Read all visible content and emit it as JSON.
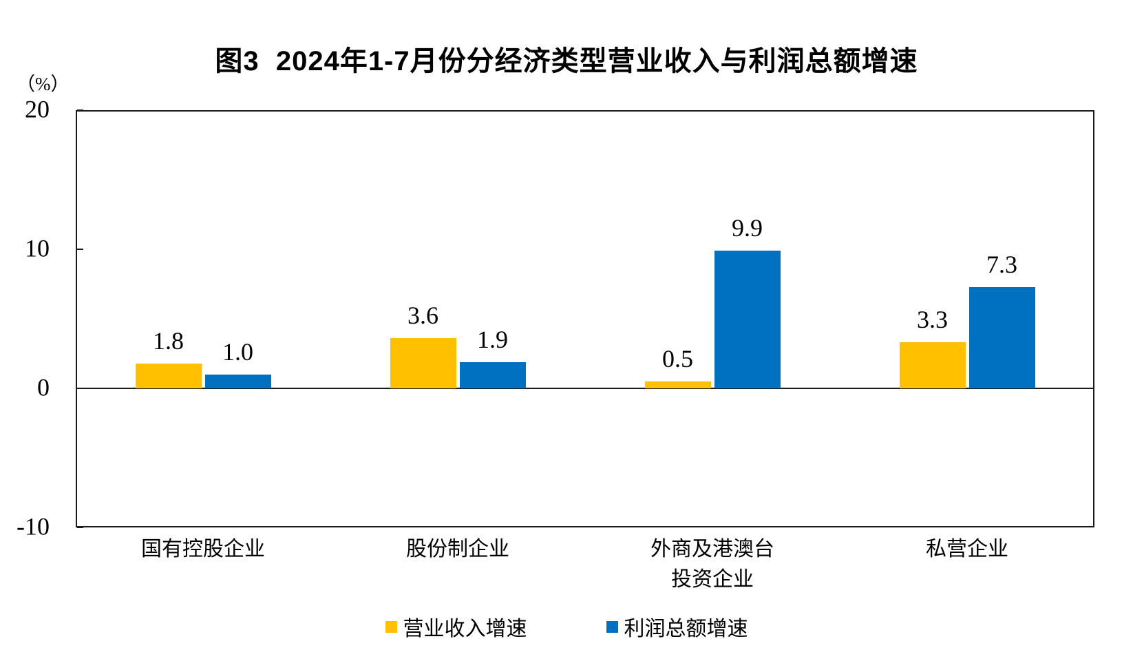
{
  "chart_data": {
    "type": "bar",
    "title": "图3  2024年1-7月份分经济类型营业收入与利润总额增速",
    "unit_label": "（%）",
    "categories": [
      "国有控股企业",
      "股份制企业",
      "外商及港澳台\n投资企业",
      "私营企业"
    ],
    "series": [
      {
        "name": "营业收入增速",
        "color": "#FFC000",
        "values": [
          1.8,
          3.6,
          0.5,
          3.3
        ]
      },
      {
        "name": "利润总额增速",
        "color": "#0070C0",
        "values": [
          1.0,
          1.9,
          9.9,
          7.3
        ]
      }
    ],
    "ylim": [
      -10,
      20
    ],
    "yticks": [
      20,
      10,
      0,
      -10
    ],
    "grid": false,
    "legend_position": "bottom",
    "axis_color": "#1a1a1a",
    "value_label_decimals": 1
  }
}
